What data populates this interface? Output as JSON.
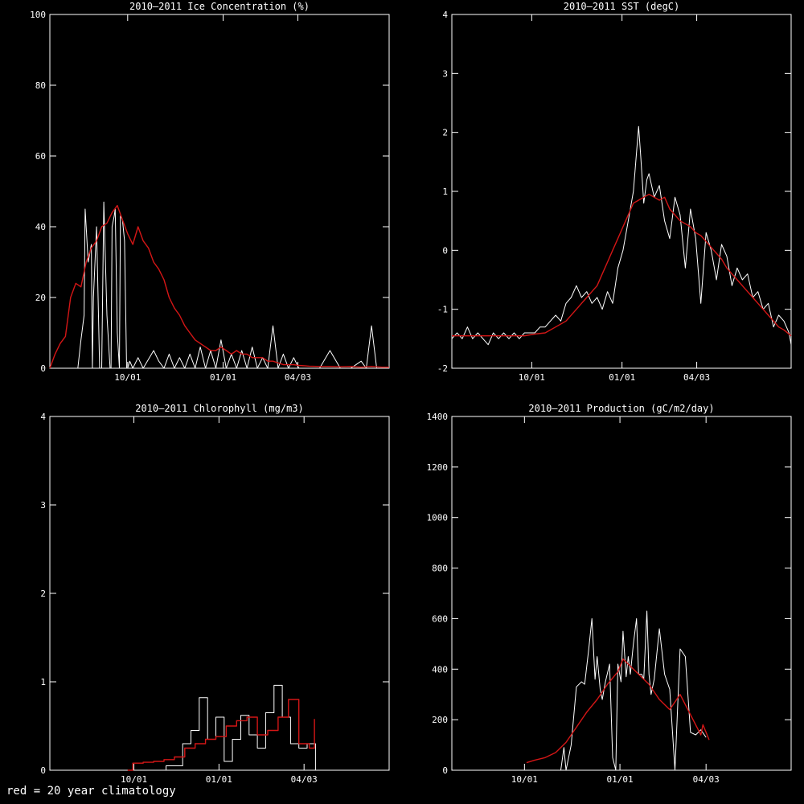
{
  "note": "red = 20 year climatology",
  "colors": {
    "observed": "#ffffff",
    "climatology": "#d41616",
    "axes": "#ffffff",
    "background": "#000000"
  },
  "chart_data": [
    {
      "type": "line",
      "title": "2010–2011 Ice Concentration (%)",
      "xlabel": "",
      "ylabel": "",
      "xlim": [
        0,
        327
      ],
      "ylim": [
        0,
        100
      ],
      "yticks": [
        0,
        20,
        40,
        60,
        80,
        100
      ],
      "xticks": [
        {
          "x": 75,
          "label": "10/01"
        },
        {
          "x": 167,
          "label": "01/01"
        },
        {
          "x": 239,
          "label": "04/03"
        }
      ],
      "step": false,
      "series": [
        {
          "role": "observed",
          "x": [
            0,
            20,
            24,
            27,
            30,
            33,
            34,
            37,
            40,
            41,
            42,
            45,
            48,
            50,
            52,
            55,
            58,
            59,
            60,
            62,
            63,
            65,
            67,
            68,
            70,
            72,
            74,
            75,
            77,
            80,
            85,
            90,
            100,
            105,
            110,
            115,
            120,
            125,
            130,
            135,
            140,
            145,
            150,
            155,
            160,
            165,
            170,
            175,
            180,
            185,
            190,
            195,
            200,
            205,
            210,
            215,
            220,
            225,
            230,
            235,
            240,
            250,
            260,
            270,
            280,
            290,
            300,
            305,
            310,
            315,
            320,
            327
          ],
          "y": [
            0,
            0,
            0,
            0,
            8,
            15,
            45,
            30,
            35,
            0,
            20,
            40,
            0,
            0,
            47,
            15,
            0,
            0,
            40,
            43,
            45,
            10,
            0,
            43,
            42,
            36,
            0,
            0,
            2,
            0,
            3,
            0,
            5,
            2,
            0,
            4,
            0,
            3,
            0,
            4,
            0,
            6,
            0,
            5,
            0,
            8,
            0,
            4,
            0,
            5,
            0,
            6,
            0,
            3,
            0,
            12,
            0,
            4,
            0,
            3,
            0,
            0,
            0,
            5,
            0,
            0,
            2,
            0,
            12,
            0,
            0,
            0
          ]
        },
        {
          "role": "climatology",
          "x": [
            0,
            5,
            10,
            15,
            20,
            25,
            30,
            35,
            40,
            45,
            50,
            55,
            60,
            65,
            70,
            75,
            80,
            85,
            90,
            95,
            100,
            105,
            110,
            115,
            120,
            125,
            130,
            135,
            140,
            145,
            150,
            155,
            160,
            165,
            170,
            175,
            180,
            185,
            190,
            195,
            200,
            205,
            210,
            215,
            220,
            225,
            230,
            235,
            240,
            250,
            260,
            270,
            280,
            290,
            300,
            310,
            320,
            327
          ],
          "y": [
            0,
            4,
            7,
            9,
            20,
            24,
            23,
            30,
            34,
            36,
            40,
            41,
            44,
            46,
            42,
            38,
            35,
            40,
            36,
            34,
            30,
            28,
            25,
            20,
            17,
            15,
            12,
            10,
            8,
            7,
            6,
            5,
            5,
            6,
            5,
            4,
            5,
            4,
            4,
            3,
            3,
            3,
            2,
            2,
            1.5,
            1,
            1,
            1,
            0.8,
            0.6,
            0.5,
            0.5,
            0.4,
            0.5,
            0.3,
            0.5,
            0.3,
            0.3
          ]
        }
      ]
    },
    {
      "type": "line",
      "title": "2010–2011 SST (degC)",
      "xlabel": "",
      "ylabel": "",
      "xlim": [
        0,
        327
      ],
      "ylim": [
        -2,
        4
      ],
      "yticks": [
        -2,
        -1,
        0,
        1,
        2,
        3,
        4
      ],
      "xticks": [
        {
          "x": 77,
          "label": "10/01"
        },
        {
          "x": 164,
          "label": "01/01"
        },
        {
          "x": 236,
          "label": "04/03"
        }
      ],
      "step": false,
      "series": [
        {
          "role": "observed",
          "x": [
            0,
            5,
            10,
            15,
            20,
            25,
            30,
            35,
            40,
            45,
            50,
            55,
            60,
            65,
            70,
            75,
            80,
            85,
            90,
            95,
            100,
            105,
            110,
            115,
            120,
            125,
            130,
            135,
            140,
            145,
            150,
            155,
            160,
            165,
            170,
            175,
            180,
            182,
            185,
            188,
            190,
            195,
            200,
            205,
            210,
            215,
            220,
            225,
            230,
            235,
            240,
            245,
            250,
            255,
            260,
            265,
            270,
            275,
            280,
            285,
            290,
            295,
            300,
            305,
            310,
            315,
            320,
            325,
            327
          ],
          "y": [
            -1.5,
            -1.4,
            -1.5,
            -1.3,
            -1.5,
            -1.4,
            -1.5,
            -1.6,
            -1.4,
            -1.5,
            -1.4,
            -1.5,
            -1.4,
            -1.5,
            -1.4,
            -1.4,
            -1.4,
            -1.3,
            -1.3,
            -1.2,
            -1.1,
            -1.2,
            -0.9,
            -0.8,
            -0.6,
            -0.8,
            -0.7,
            -0.9,
            -0.8,
            -1.0,
            -0.7,
            -0.9,
            -0.3,
            0.0,
            0.5,
            1.0,
            2.1,
            1.6,
            0.8,
            1.2,
            1.3,
            0.9,
            1.1,
            0.5,
            0.2,
            0.9,
            0.6,
            -0.3,
            0.7,
            0.2,
            -0.9,
            0.3,
            0.0,
            -0.5,
            0.1,
            -0.1,
            -0.6,
            -0.3,
            -0.5,
            -0.4,
            -0.8,
            -0.7,
            -1.0,
            -0.9,
            -1.3,
            -1.1,
            -1.2,
            -1.4,
            -1.6
          ]
        },
        {
          "role": "climatology",
          "x": [
            0,
            10,
            20,
            30,
            40,
            50,
            60,
            70,
            80,
            90,
            100,
            110,
            120,
            125,
            130,
            135,
            140,
            145,
            150,
            155,
            160,
            165,
            170,
            175,
            180,
            185,
            190,
            195,
            200,
            205,
            210,
            215,
            220,
            225,
            230,
            235,
            240,
            245,
            250,
            255,
            260,
            265,
            270,
            275,
            280,
            285,
            290,
            295,
            300,
            305,
            310,
            315,
            320,
            327
          ],
          "y": [
            -1.45,
            -1.45,
            -1.45,
            -1.45,
            -1.45,
            -1.45,
            -1.45,
            -1.45,
            -1.42,
            -1.4,
            -1.3,
            -1.2,
            -1.0,
            -0.9,
            -0.8,
            -0.7,
            -0.6,
            -0.4,
            -0.2,
            0.0,
            0.2,
            0.4,
            0.6,
            0.8,
            0.85,
            0.9,
            0.95,
            0.9,
            0.85,
            0.9,
            0.7,
            0.6,
            0.5,
            0.45,
            0.4,
            0.3,
            0.25,
            0.15,
            0.05,
            -0.05,
            -0.15,
            -0.3,
            -0.4,
            -0.5,
            -0.6,
            -0.7,
            -0.8,
            -0.9,
            -1.0,
            -1.1,
            -1.2,
            -1.3,
            -1.35,
            -1.45
          ]
        }
      ]
    },
    {
      "type": "line",
      "title": "2010–2011 Chlorophyll (mg/m3)",
      "xlabel": "",
      "ylabel": "",
      "xlim": [
        0,
        327
      ],
      "ylim": [
        0,
        4
      ],
      "yticks": [
        0,
        1,
        2,
        3,
        4
      ],
      "xticks": [
        {
          "x": 81,
          "label": "10/01"
        },
        {
          "x": 163,
          "label": "01/01"
        },
        {
          "x": 245,
          "label": "04/03"
        }
      ],
      "step": true,
      "series": [
        {
          "role": "observed",
          "x": [
            108,
            112,
            120,
            128,
            136,
            144,
            152,
            160,
            168,
            176,
            184,
            192,
            200,
            208,
            216,
            224,
            232,
            240,
            248,
            256
          ],
          "y": [
            0,
            0.05,
            0.05,
            0.3,
            0.45,
            0.82,
            0.35,
            0.6,
            0.1,
            0.35,
            0.62,
            0.4,
            0.25,
            0.65,
            0.96,
            0.6,
            0.3,
            0.25,
            0.3,
            0
          ]
        },
        {
          "role": "climatology",
          "x": [
            75,
            80,
            90,
            100,
            110,
            120,
            130,
            140,
            150,
            160,
            170,
            180,
            190,
            200,
            210,
            220,
            230,
            240,
            250,
            255
          ],
          "y": [
            0,
            0.08,
            0.09,
            0.1,
            0.12,
            0.15,
            0.25,
            0.3,
            0.35,
            0.38,
            0.5,
            0.56,
            0.6,
            0.4,
            0.45,
            0.6,
            0.8,
            0.3,
            0.25,
            0.58
          ]
        }
      ]
    },
    {
      "type": "line",
      "title": "2010–2011 Production (gC/m2/day)",
      "xlabel": "",
      "ylabel": "",
      "xlim": [
        0,
        327
      ],
      "ylim": [
        0,
        1400
      ],
      "yticks": [
        0,
        200,
        400,
        600,
        800,
        1000,
        1200,
        1400
      ],
      "xticks": [
        {
          "x": 70,
          "label": "10/01"
        },
        {
          "x": 162,
          "label": "01/01"
        },
        {
          "x": 245,
          "label": "04/03"
        }
      ],
      "step": false,
      "series": [
        {
          "role": "observed",
          "x": [
            95,
            105,
            108,
            110,
            115,
            120,
            125,
            128,
            132,
            135,
            138,
            140,
            143,
            145,
            148,
            152,
            155,
            158,
            160,
            163,
            165,
            168,
            170,
            172,
            175,
            178,
            180,
            183,
            185,
            188,
            190,
            192,
            195,
            200,
            205,
            210,
            215,
            220,
            225,
            230,
            235,
            240,
            245
          ],
          "y": [
            0,
            0,
            90,
            0,
            100,
            330,
            350,
            340,
            480,
            600,
            360,
            450,
            320,
            280,
            350,
            420,
            50,
            0,
            420,
            350,
            550,
            370,
            450,
            380,
            500,
            600,
            380,
            380,
            360,
            630,
            380,
            300,
            360,
            560,
            380,
            320,
            0,
            480,
            450,
            150,
            140,
            160,
            130
          ]
        },
        {
          "role": "climatology",
          "x": [
            72,
            80,
            90,
            100,
            110,
            120,
            130,
            140,
            150,
            160,
            165,
            170,
            175,
            180,
            190,
            200,
            210,
            220,
            230,
            240,
            242,
            245,
            248
          ],
          "y": [
            30,
            40,
            50,
            70,
            110,
            170,
            230,
            280,
            340,
            390,
            440,
            420,
            400,
            380,
            340,
            280,
            240,
            300,
            220,
            140,
            180,
            150,
            120
          ]
        }
      ]
    }
  ]
}
